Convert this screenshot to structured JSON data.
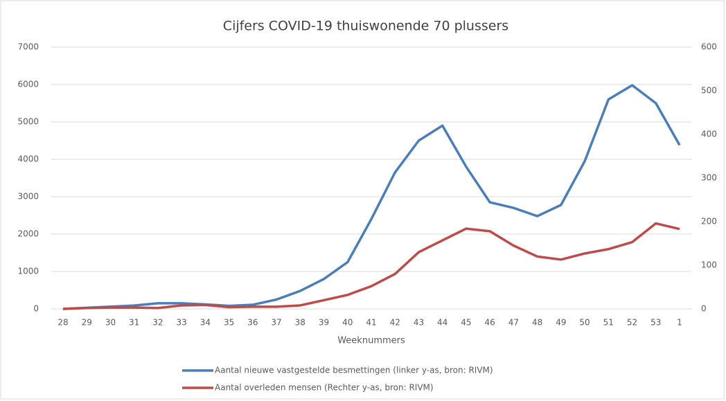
{
  "chart_data": {
    "type": "line",
    "title": "Cijfers COVID-19 thuiswonende 70 plussers",
    "x_label": "Weeknummers",
    "categories": [
      "28",
      "29",
      "30",
      "31",
      "32",
      "33",
      "34",
      "35",
      "36",
      "37",
      "38",
      "39",
      "40",
      "41",
      "42",
      "43",
      "44",
      "45",
      "46",
      "47",
      "48",
      "49",
      "50",
      "51",
      "52",
      "53",
      "1"
    ],
    "series": [
      {
        "name": "Aantal nieuwe vastgestelde besmettingen (linker y-as, bron: RIVM)",
        "color": "#4a7ebb",
        "axis": "y",
        "values": [
          0,
          30,
          60,
          90,
          150,
          150,
          120,
          80,
          110,
          250,
          480,
          800,
          1250,
          2400,
          3650,
          4500,
          4900,
          3800,
          2850,
          2700,
          2480,
          2780,
          3950,
          5600,
          5980,
          5500,
          4380
        ]
      },
      {
        "name": "Aantal overleden mensen (Rechter y-as, bron: RIVM)",
        "color": "#be4b48",
        "axis": "y2",
        "values": [
          0,
          2,
          3,
          3,
          2,
          8,
          9,
          4,
          5,
          5,
          8,
          20,
          32,
          52,
          80,
          130,
          157,
          184,
          178,
          145,
          120,
          113,
          127,
          137,
          153,
          196,
          183
        ]
      }
    ],
    "ylim": [
      0,
      7000
    ],
    "yticks": [
      0,
      1000,
      2000,
      3000,
      4000,
      5000,
      6000,
      7000
    ],
    "y2lim": [
      0,
      600
    ],
    "y2ticks": [
      0,
      100,
      200,
      300,
      400,
      500,
      600
    ],
    "grid": true,
    "legend": "bottom"
  }
}
